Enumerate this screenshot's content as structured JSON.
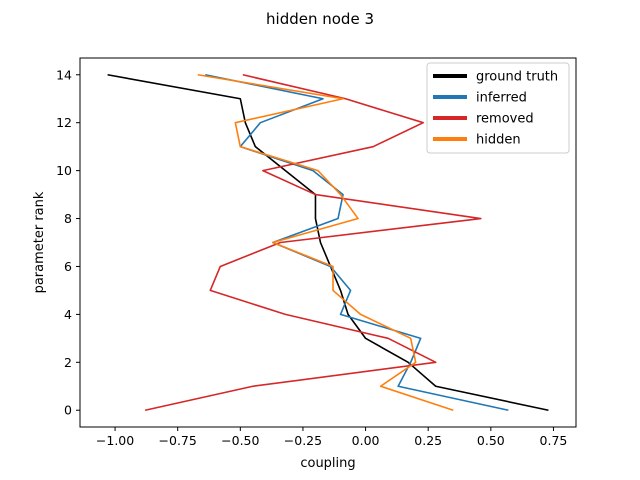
{
  "chart_data": {
    "type": "line",
    "title": "hidden node 3",
    "xlabel": "coupling",
    "ylabel": "parameter rank",
    "xlim": [
      -1.14,
      0.84
    ],
    "ylim": [
      -0.7,
      14.7
    ],
    "xticks": [
      -1.0,
      -0.75,
      -0.5,
      -0.25,
      0.0,
      0.25,
      0.5,
      0.75
    ],
    "xtick_labels": [
      "−1.00",
      "−0.75",
      "−0.50",
      "−0.25",
      "0.00",
      "0.25",
      "0.50",
      "0.75"
    ],
    "yticks": [
      0,
      2,
      4,
      6,
      8,
      10,
      12,
      14
    ],
    "ytick_labels": [
      "0",
      "2",
      "4",
      "6",
      "8",
      "10",
      "12",
      "14"
    ],
    "grid": false,
    "legend_position": "top-right",
    "series": [
      {
        "name": "ground truth",
        "color": "#000000",
        "points": [
          [
            0.73,
            0
          ],
          [
            0.28,
            1
          ],
          [
            0.17,
            2
          ],
          [
            0.0,
            3
          ],
          [
            -0.07,
            4
          ],
          [
            -0.1,
            5
          ],
          [
            -0.14,
            6
          ],
          [
            -0.18,
            7
          ],
          [
            -0.2,
            8
          ],
          [
            -0.2,
            9
          ],
          [
            -0.32,
            10
          ],
          [
            -0.44,
            11
          ],
          [
            -0.48,
            12
          ],
          [
            -0.5,
            13
          ],
          [
            -1.03,
            14
          ]
        ]
      },
      {
        "name": "inferred",
        "color": "#1f77b4",
        "points": [
          [
            0.57,
            0
          ],
          [
            0.13,
            1
          ],
          [
            0.18,
            2
          ],
          [
            0.22,
            3
          ],
          [
            -0.1,
            4
          ],
          [
            -0.06,
            5
          ],
          [
            -0.14,
            6
          ],
          [
            -0.37,
            7
          ],
          [
            -0.11,
            8
          ],
          [
            -0.09,
            9
          ],
          [
            -0.21,
            10
          ],
          [
            -0.5,
            11
          ],
          [
            -0.42,
            12
          ],
          [
            -0.17,
            13
          ],
          [
            -0.64,
            14
          ]
        ]
      },
      {
        "name": "removed",
        "color": "#d62728",
        "points": [
          [
            -0.88,
            0
          ],
          [
            -0.45,
            1
          ],
          [
            0.28,
            2
          ],
          [
            0.09,
            3
          ],
          [
            -0.32,
            4
          ],
          [
            -0.62,
            5
          ],
          [
            -0.58,
            6
          ],
          [
            -0.34,
            7
          ],
          [
            0.46,
            8
          ],
          [
            -0.2,
            9
          ],
          [
            -0.41,
            10
          ],
          [
            0.03,
            11
          ],
          [
            0.23,
            12
          ],
          [
            -0.08,
            13
          ],
          [
            -0.49,
            14
          ]
        ]
      },
      {
        "name": "hidden",
        "color": "#ff7f0e",
        "points": [
          [
            0.35,
            0
          ],
          [
            0.06,
            1
          ],
          [
            0.2,
            2
          ],
          [
            0.18,
            3
          ],
          [
            -0.02,
            4
          ],
          [
            -0.13,
            5
          ],
          [
            -0.13,
            6
          ],
          [
            -0.37,
            7
          ],
          [
            -0.03,
            8
          ],
          [
            -0.1,
            9
          ],
          [
            -0.19,
            10
          ],
          [
            -0.5,
            11
          ],
          [
            -0.52,
            12
          ],
          [
            -0.09,
            13
          ],
          [
            -0.67,
            14
          ]
        ]
      }
    ]
  }
}
